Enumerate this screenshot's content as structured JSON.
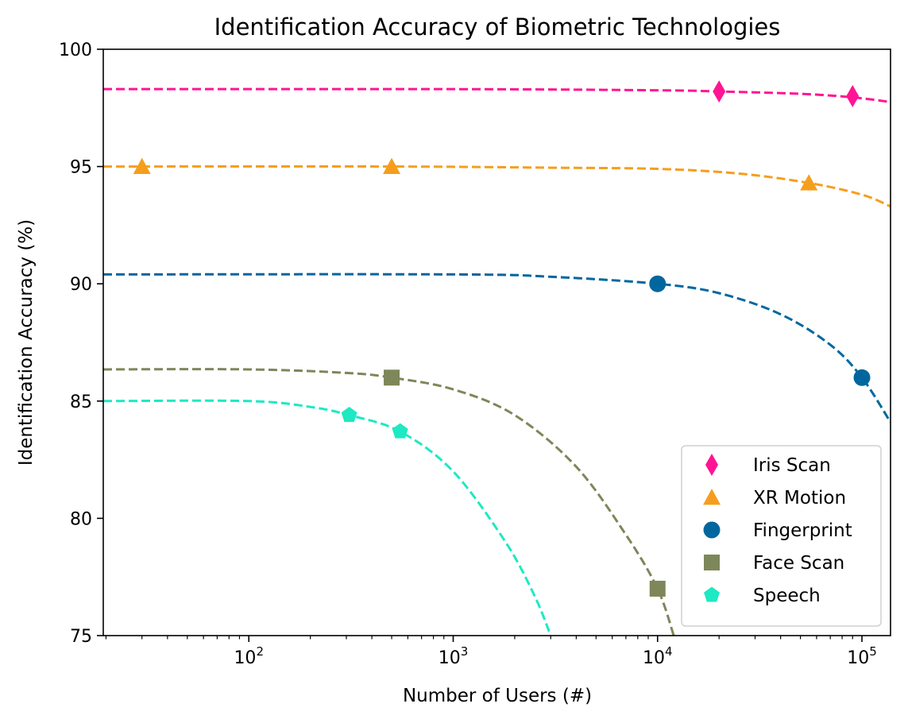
{
  "chart_data": {
    "type": "scatter",
    "title": "Identification Accuracy of Biometric Technologies",
    "xlabel": "Number of Users (#)",
    "ylabel": "Identification Accuracy (%)",
    "x_scale": "log",
    "xlim": [
      19.4,
      138000
    ],
    "ylim": [
      75,
      100
    ],
    "yticks": [
      75,
      80,
      85,
      90,
      95,
      100
    ],
    "xticks_major": [
      {
        "value": 100,
        "base": "10",
        "exp": "2"
      },
      {
        "value": 1000,
        "base": "10",
        "exp": "3"
      },
      {
        "value": 10000,
        "base": "10",
        "exp": "4"
      },
      {
        "value": 100000,
        "base": "10",
        "exp": "5"
      }
    ],
    "grid": false,
    "legend_position": "lower right",
    "series": [
      {
        "name": "Iris Scan",
        "color": "#ff1493",
        "marker": "diamond",
        "points": [
          {
            "x": 20000,
            "y": 98.2
          },
          {
            "x": 90000,
            "y": 98.0
          }
        ],
        "trend": [
          {
            "x": 19.4,
            "y": 98.3
          },
          {
            "x": 1000,
            "y": 98.3
          },
          {
            "x": 10000,
            "y": 98.25
          },
          {
            "x": 20000,
            "y": 98.2
          },
          {
            "x": 50000,
            "y": 98.1
          },
          {
            "x": 90000,
            "y": 97.95
          },
          {
            "x": 138000,
            "y": 97.75
          }
        ]
      },
      {
        "name": "XR Motion",
        "color": "#f59e1e",
        "marker": "triangle",
        "points": [
          {
            "x": 30,
            "y": 95.0
          },
          {
            "x": 500,
            "y": 95.0
          },
          {
            "x": 55000,
            "y": 94.3
          }
        ],
        "trend": [
          {
            "x": 19.4,
            "y": 95.0
          },
          {
            "x": 500,
            "y": 95.0
          },
          {
            "x": 3000,
            "y": 94.95
          },
          {
            "x": 10000,
            "y": 94.9
          },
          {
            "x": 25000,
            "y": 94.7
          },
          {
            "x": 55000,
            "y": 94.3
          },
          {
            "x": 100000,
            "y": 93.8
          },
          {
            "x": 138000,
            "y": 93.3
          }
        ]
      },
      {
        "name": "Fingerprint",
        "color": "#00679e",
        "marker": "circle",
        "points": [
          {
            "x": 10000,
            "y": 90.0
          },
          {
            "x": 100000,
            "y": 86.0
          }
        ],
        "trend": [
          {
            "x": 19.4,
            "y": 90.4
          },
          {
            "x": 1000,
            "y": 90.4
          },
          {
            "x": 3000,
            "y": 90.3
          },
          {
            "x": 10000,
            "y": 90.0
          },
          {
            "x": 20000,
            "y": 89.6
          },
          {
            "x": 40000,
            "y": 88.7
          },
          {
            "x": 70000,
            "y": 87.4
          },
          {
            "x": 100000,
            "y": 86.0
          },
          {
            "x": 138000,
            "y": 84.1
          }
        ]
      },
      {
        "name": "Face Scan",
        "color": "#7d875a",
        "marker": "square",
        "points": [
          {
            "x": 500,
            "y": 86.0
          },
          {
            "x": 10000,
            "y": 77.0
          }
        ],
        "trend": [
          {
            "x": 19.4,
            "y": 86.35
          },
          {
            "x": 100,
            "y": 86.35
          },
          {
            "x": 300,
            "y": 86.2
          },
          {
            "x": 500,
            "y": 86.0
          },
          {
            "x": 1000,
            "y": 85.5
          },
          {
            "x": 2000,
            "y": 84.4
          },
          {
            "x": 4000,
            "y": 82.2
          },
          {
            "x": 7000,
            "y": 79.3
          },
          {
            "x": 10000,
            "y": 77.0
          },
          {
            "x": 12000,
            "y": 75.0
          }
        ]
      },
      {
        "name": "Speech",
        "color": "#1de9c3",
        "marker": "pentagon",
        "points": [
          {
            "x": 310,
            "y": 84.4
          },
          {
            "x": 550,
            "y": 83.7
          }
        ],
        "trend": [
          {
            "x": 19.4,
            "y": 85.0
          },
          {
            "x": 100,
            "y": 85.0
          },
          {
            "x": 200,
            "y": 84.75
          },
          {
            "x": 310,
            "y": 84.4
          },
          {
            "x": 550,
            "y": 83.7
          },
          {
            "x": 1000,
            "y": 82.0
          },
          {
            "x": 1800,
            "y": 79.0
          },
          {
            "x": 2500,
            "y": 76.7
          },
          {
            "x": 3000,
            "y": 75.0
          }
        ]
      }
    ]
  }
}
